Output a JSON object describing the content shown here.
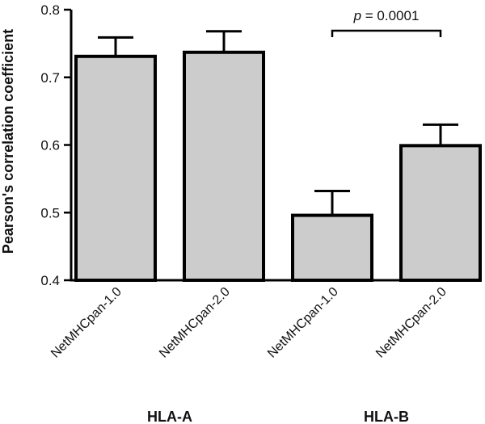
{
  "chart_data": {
    "type": "bar",
    "title": "",
    "ylabel": "Pearson's correlation coefficient",
    "xlabel": "",
    "ylim": [
      0.4,
      0.8
    ],
    "yticks": [
      0.4,
      0.5,
      0.6,
      0.7,
      0.8
    ],
    "ytick_labels": [
      "0.4",
      "0.5",
      "0.6",
      "0.7",
      "0.8"
    ],
    "categories": [
      "NetMHCpan-1.0",
      "NetMHCpan-2.0",
      "NetMHCpan-1.0",
      "NetMHCpan-2.0"
    ],
    "values": [
      0.731,
      0.737,
      0.496,
      0.599
    ],
    "errors": [
      0.028,
      0.031,
      0.036,
      0.031
    ],
    "groups": [
      {
        "label": "HLA-A",
        "members": [
          0,
          1
        ]
      },
      {
        "label": "HLA-B",
        "members": [
          2,
          3
        ]
      }
    ],
    "annotation": {
      "p_symbol": "p",
      "p_text": " = 0.0001",
      "between": [
        2,
        3
      ]
    },
    "grid": false,
    "legend": "none",
    "colors": {
      "bar_fill": "#cccccc",
      "bar_stroke": "#000000"
    }
  }
}
